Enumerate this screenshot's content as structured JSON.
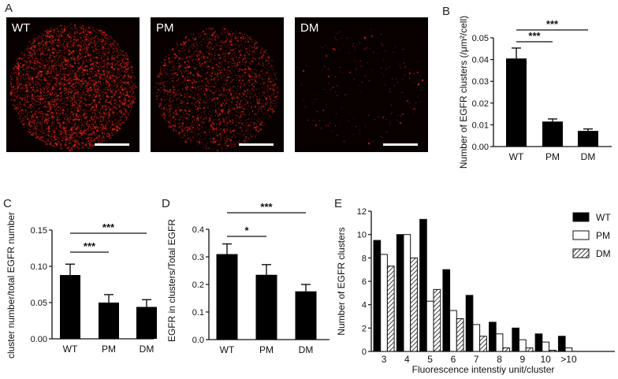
{
  "panels": {
    "a": "A",
    "b": "B",
    "c": "C",
    "d": "D",
    "e": "E"
  },
  "micrographs": [
    {
      "label": "WT"
    },
    {
      "label": "PM"
    },
    {
      "label": "DM"
    }
  ],
  "chart_data": [
    {
      "id": "B",
      "type": "bar",
      "categories": [
        "WT",
        "PM",
        "DM"
      ],
      "values": [
        0.0405,
        0.0115,
        0.0072
      ],
      "errors": [
        0.0048,
        0.0012,
        0.0009
      ],
      "ylabel": "Number of EGFR clusters (/μm²/cell)",
      "ylim": [
        0,
        0.05
      ],
      "yticks": [
        0.0,
        0.01,
        0.02,
        0.03,
        0.04,
        0.05
      ],
      "yticklabels": [
        "0.00",
        "0.01",
        "0.02",
        "0.03",
        "0.04",
        "0.05"
      ],
      "significance": [
        {
          "from": "WT",
          "to": "PM",
          "label": "***"
        },
        {
          "from": "WT",
          "to": "DM",
          "label": "***"
        }
      ]
    },
    {
      "id": "C",
      "type": "bar",
      "categories": [
        "WT",
        "PM",
        "DM"
      ],
      "values": [
        0.088,
        0.05,
        0.044
      ],
      "errors": [
        0.015,
        0.011,
        0.01
      ],
      "ylabel": "cluster number/total EGFR number",
      "ylim": [
        0,
        0.15
      ],
      "yticks": [
        0.0,
        0.05,
        0.1,
        0.15
      ],
      "yticklabels": [
        "0.00",
        "0.05",
        "0.10",
        "0.15"
      ],
      "significance": [
        {
          "from": "WT",
          "to": "PM",
          "label": "***"
        },
        {
          "from": "WT",
          "to": "DM",
          "label": "***"
        }
      ]
    },
    {
      "id": "D",
      "type": "bar",
      "categories": [
        "WT",
        "PM",
        "DM"
      ],
      "values": [
        0.31,
        0.235,
        0.175
      ],
      "errors": [
        0.037,
        0.037,
        0.025
      ],
      "ylabel": "EGFR in clusters/Total EGFR",
      "ylim": [
        0,
        0.4
      ],
      "yticks": [
        0.0,
        0.1,
        0.2,
        0.3,
        0.4
      ],
      "yticklabels": [
        "0.0",
        "0.1",
        "0.2",
        "0.3",
        "0.4"
      ],
      "significance": [
        {
          "from": "WT",
          "to": "PM",
          "label": "*"
        },
        {
          "from": "WT",
          "to": "DM",
          "label": "***"
        }
      ]
    },
    {
      "id": "E",
      "type": "bar",
      "categories": [
        "3",
        "4",
        "5",
        "6",
        "7",
        "8",
        "9",
        "10",
        ">10"
      ],
      "series": [
        {
          "name": "WT",
          "values": [
            9.5,
            10.0,
            11.3,
            7.0,
            4.8,
            2.5,
            2.0,
            1.5,
            1.3
          ]
        },
        {
          "name": "PM",
          "values": [
            8.3,
            10.0,
            4.3,
            3.5,
            2.3,
            1.5,
            1.0,
            0.8,
            0.3
          ]
        },
        {
          "name": "DM",
          "values": [
            7.3,
            8.0,
            5.3,
            2.8,
            1.3,
            0.3,
            0.3,
            0.1,
            0.0
          ]
        }
      ],
      "series_fill": [
        "solid-black",
        "white",
        "hatched"
      ],
      "xlabel": "Fluorescence intenstiy unit/cluster",
      "ylabel": "Number of EGFR clusters",
      "ylim": [
        0,
        12
      ],
      "yticks": [
        0,
        2,
        4,
        6,
        8,
        10,
        12
      ],
      "yticklabels": [
        "0",
        "2",
        "4",
        "6",
        "8",
        "10",
        "12"
      ],
      "legend_position": "top-right"
    }
  ]
}
